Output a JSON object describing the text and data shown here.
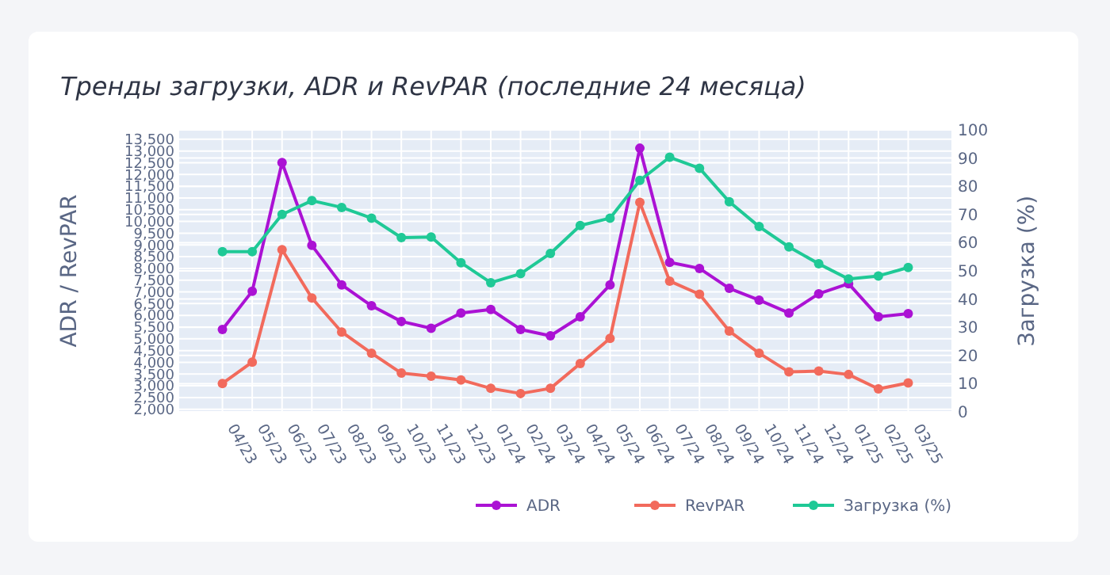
{
  "chart_data": {
    "type": "line",
    "title": "Тренды загрузки, ADR и RevPAR (последние 24 месяца)",
    "ylabel": "ADR / RevPAR",
    "y2label": "Загрузка (%)",
    "categories": [
      "04/23",
      "05/23",
      "06/23",
      "07/23",
      "08/23",
      "09/23",
      "10/23",
      "11/23",
      "12/23",
      "01/24",
      "02/24",
      "03/24",
      "04/24",
      "05/24",
      "06/24",
      "07/24",
      "08/24",
      "09/24",
      "10/24",
      "11/24",
      "12/24",
      "01/25",
      "02/25",
      "03/25"
    ],
    "series": [
      {
        "name": "ADR",
        "color": "#ab12d4",
        "values": [
          5400,
          7030,
          12510,
          8980,
          7300,
          6410,
          5740,
          5450,
          6100,
          6250,
          5400,
          5130,
          5940,
          7300,
          13120,
          8260,
          8000,
          7150,
          6650,
          6100,
          6920,
          7350,
          5940,
          6070
        ]
      },
      {
        "name": "RevPAR",
        "color": "#f26a5c",
        "values": [
          3100,
          4010,
          8800,
          6740,
          5290,
          4390,
          3540,
          3410,
          3250,
          2890,
          2670,
          2890,
          3950,
          5020,
          10810,
          7460,
          6900,
          5330,
          4390,
          3590,
          3630,
          3480,
          2870,
          3120
        ]
      },
      {
        "name": "Загрузка (%)",
        "color": "#1fc996",
        "axis": "y2",
        "values": [
          56.8,
          56.8,
          70.0,
          74.9,
          72.5,
          68.7,
          61.8,
          62.0,
          52.9,
          45.8,
          49.0,
          56.2,
          66.1,
          68.7,
          82.1,
          90.3,
          86.4,
          74.5,
          65.7,
          58.5,
          52.5,
          47.1,
          48.2,
          51.2
        ]
      }
    ],
    "ylim": [
      1890,
      13900
    ],
    "yticks": [
      {
        "value": 2000,
        "label": "2,000"
      },
      {
        "value": 2500,
        "label": "2,500"
      },
      {
        "value": 3000,
        "label": "3,000"
      },
      {
        "value": 3500,
        "label": "3,500"
      },
      {
        "value": 4000,
        "label": "4,000"
      },
      {
        "value": 4500,
        "label": "4,500"
      },
      {
        "value": 5000,
        "label": "5,000"
      },
      {
        "value": 5500,
        "label": "5,500"
      },
      {
        "value": 6000,
        "label": "6,000"
      },
      {
        "value": 6500,
        "label": "6,500"
      },
      {
        "value": 7000,
        "label": "7,000"
      },
      {
        "value": 7500,
        "label": "7,500"
      },
      {
        "value": 8000,
        "label": "8,000"
      },
      {
        "value": 8500,
        "label": "8,500"
      },
      {
        "value": 9000,
        "label": "9,000"
      },
      {
        "value": 9500,
        "label": "9,500"
      },
      {
        "value": 10000,
        "label": "10,000"
      },
      {
        "value": 10500,
        "label": "10,500"
      },
      {
        "value": 11000,
        "label": "11,000"
      },
      {
        "value": 11500,
        "label": "11,500"
      },
      {
        "value": 12000,
        "label": "12,000"
      },
      {
        "value": 12500,
        "label": "12,500"
      },
      {
        "value": 13000,
        "label": "13,000"
      },
      {
        "value": 13500,
        "label": "13,500"
      }
    ],
    "y2lim": [
      0,
      100
    ],
    "y2ticks": [
      0,
      10,
      20,
      30,
      40,
      50,
      60,
      70,
      80,
      90,
      100
    ],
    "grid": true,
    "legend": "bottom right",
    "marker": "circle",
    "line_style": "solid"
  }
}
